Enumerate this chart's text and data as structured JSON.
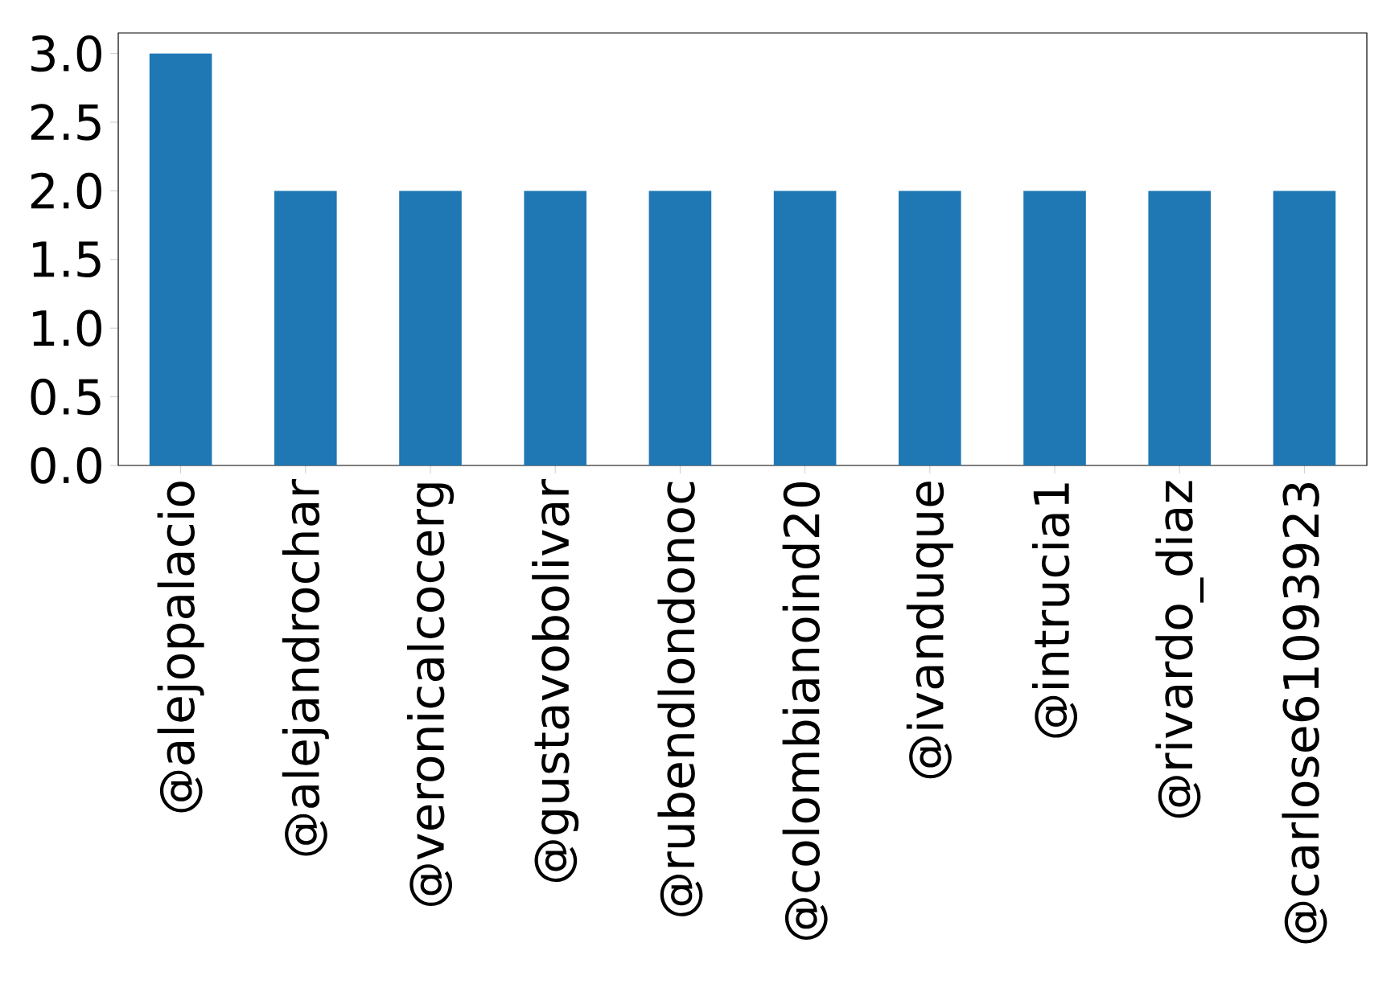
{
  "chart_data": {
    "type": "bar",
    "categories": [
      "@alejopalacio",
      "@alejandrochar",
      "@veronicalcocerg",
      "@gustavobolivar",
      "@rubendlondonoc",
      "@colombianoind20",
      "@ivanduque",
      "@intrucia1",
      "@rivardo_diaz",
      "@carlose61093923"
    ],
    "values": [
      3,
      2,
      2,
      2,
      2,
      2,
      2,
      2,
      2,
      2
    ],
    "color": "#1f77b4",
    "ylim": [
      0,
      3.15
    ],
    "yticks": [
      {
        "value": 0,
        "label": "0.0"
      },
      0.5,
      {
        "value": 1,
        "label": "1.0"
      },
      1.5,
      {
        "value": 2,
        "label": "2.0"
      },
      2.5,
      {
        "value": 3,
        "label": "3.0"
      }
    ]
  }
}
